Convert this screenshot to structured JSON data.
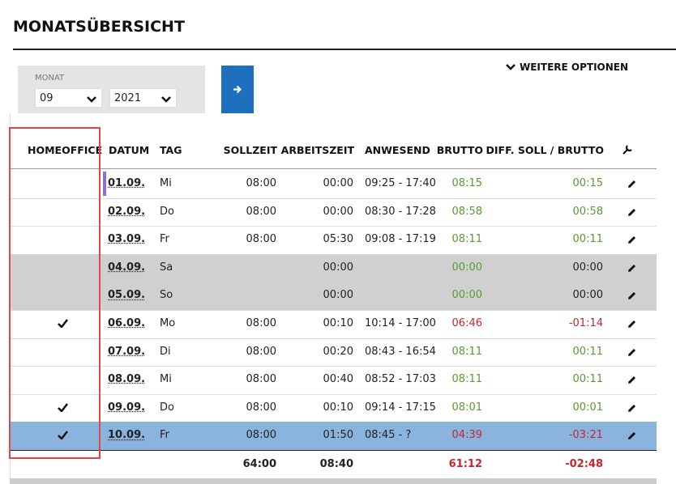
{
  "page": {
    "title": "MONATSÜBERSICHT",
    "filter": {
      "label": "MONAT",
      "month": "09",
      "year": "2021"
    },
    "options": "WEITERE OPTIONEN",
    "table": {
      "headers": [
        "HOMEOFFICE",
        "DATUM",
        "TAG",
        "SOLLZEIT",
        "ARBEITSZEIT",
        "ANWESEND",
        "BRUTTO",
        "DIFF. SOLL / BRUTTO"
      ],
      "rows": [
        {
          "homeoffice": false,
          "datum": "01.09.",
          "tag": "Mi",
          "sollzeit": "08:00",
          "arbeitszeit": "00:00",
          "anwesend": "09:25 - 17:40",
          "brutto": "08:15",
          "diff": "00:15",
          "brutto_color": "#5a9a32",
          "diff_color": "#5a9a32",
          "marker_color": "#8c6fd6"
        },
        {
          "homeoffice": false,
          "datum": "02.09.",
          "tag": "Do",
          "sollzeit": "08:00",
          "arbeitszeit": "00:00",
          "anwesend": "08:30 - 17:28",
          "brutto": "08:58",
          "diff": "00:58",
          "brutto_color": "#5a9a32",
          "diff_color": "#5a9a32"
        },
        {
          "homeoffice": false,
          "datum": "03.09.",
          "tag": "Fr",
          "sollzeit": "08:00",
          "arbeitszeit": "05:30",
          "anwesend": "09:08 - 17:19",
          "brutto": "08:11",
          "diff": "00:11",
          "brutto_color": "#5a9a32",
          "diff_color": "#5a9a32"
        },
        {
          "homeoffice": false,
          "datum": "04.09.",
          "tag": "Sa",
          "arbeitszeit": "00:00",
          "brutto": "00:00",
          "diff": "00:00",
          "brutto_color": "#5a9a32",
          "diff_color": "#222222",
          "background": "#d0d0d0"
        },
        {
          "homeoffice": false,
          "datum": "05.09.",
          "tag": "So",
          "arbeitszeit": "00:00",
          "brutto": "00:00",
          "diff": "00:00",
          "brutto_color": "#5a9a32",
          "diff_color": "#222222",
          "background": "#d0d0d0"
        },
        {
          "homeoffice": true,
          "datum": "06.09.",
          "tag": "Mo",
          "sollzeit": "08:00",
          "arbeitszeit": "00:10",
          "anwesend": "10:14 - 17:00",
          "brutto": "06:46",
          "diff": "-01:14",
          "brutto_color": "#c0282d",
          "diff_color": "#c0282d"
        },
        {
          "homeoffice": false,
          "datum": "07.09.",
          "tag": "Di",
          "sollzeit": "08:00",
          "arbeitszeit": "00:20",
          "anwesend": "08:43 - 16:54",
          "brutto": "08:11",
          "diff": "00:11",
          "brutto_color": "#5a9a32",
          "diff_color": "#5a9a32"
        },
        {
          "homeoffice": false,
          "datum": "08.09.",
          "tag": "Mi",
          "sollzeit": "08:00",
          "arbeitszeit": "00:40",
          "anwesend": "08:52 - 17:03",
          "brutto": "08:11",
          "diff": "00:11",
          "brutto_color": "#5a9a32",
          "diff_color": "#5a9a32"
        },
        {
          "homeoffice": true,
          "datum": "09.09.",
          "tag": "Do",
          "sollzeit": "08:00",
          "arbeitszeit": "00:10",
          "anwesend": "09:14 - 17:15",
          "brutto": "08:01",
          "diff": "00:01",
          "brutto_color": "#5a9a32",
          "diff_color": "#5a9a32"
        },
        {
          "homeoffice": true,
          "datum": "10.09.",
          "tag": "Fr",
          "sollzeit": "08:00",
          "arbeitszeit": "01:50",
          "anwesend": "08:45 - ?",
          "brutto": "04:39",
          "diff": "-03:21",
          "brutto_color": "#c0282d",
          "diff_color": "#c0282d",
          "background": "#8ab4de"
        }
      ],
      "totals": {
        "sollzeit": "64:00",
        "arbeitszeit": "08:40",
        "brutto": "61:12",
        "diff": "-02:48",
        "brutto_color": "#c0282d",
        "diff_color": "#c0282d"
      }
    }
  }
}
